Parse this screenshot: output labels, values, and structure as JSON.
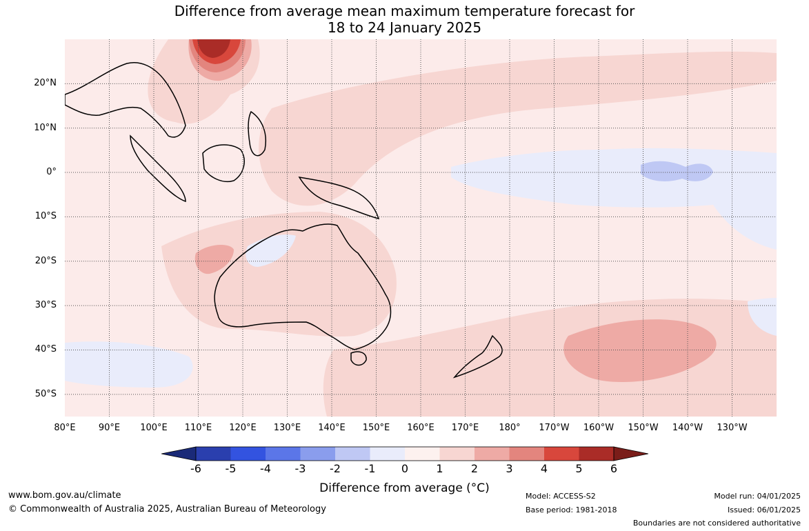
{
  "title": {
    "line1": "Difference from average mean maximum temperature forecast for",
    "line2": "18 to 24 January 2025"
  },
  "map": {
    "lat_labels": [
      "20°N",
      "10°N",
      "0°",
      "10°S",
      "20°S",
      "30°S",
      "40°S",
      "50°S"
    ],
    "lon_labels": [
      "80°E",
      "90°E",
      "100°E",
      "110°E",
      "120°E",
      "130°E",
      "140°E",
      "150°E",
      "160°E",
      "170°E",
      "180°",
      "170°W",
      "160°W",
      "150°W",
      "140°W",
      "130°W"
    ],
    "lat_range": [
      -55,
      30
    ],
    "lon_range": [
      80,
      240
    ],
    "gridlines": "dotted"
  },
  "colorbar": {
    "ticks": [
      "-6",
      "-5",
      "-4",
      "-3",
      "-2",
      "-1",
      "0",
      "1",
      "2",
      "3",
      "4",
      "5",
      "6"
    ],
    "colors": [
      "#1a2a78",
      "#2a3fae",
      "#3353e0",
      "#5b76e8",
      "#8a9ded",
      "#bfc8f4",
      "#e9ecfb",
      "#fdf1ef",
      "#f7d6d2",
      "#eeaaa5",
      "#e3857e",
      "#d8473c",
      "#aa2c27",
      "#7a1d19"
    ],
    "label": "Difference from average (°C)"
  },
  "footer": {
    "site": "www.bom.gov.au/climate",
    "copyright": "© Commonwealth of Australia 2025, Australian Bureau of Meteorology",
    "model": "Model: ACCESS-S2",
    "base_period": "Base period: 1981-2018",
    "model_run": "Model run: 04/01/2025",
    "issued": "Issued: 06/01/2025",
    "boundaries": "Boundaries are not considered authoritative"
  }
}
